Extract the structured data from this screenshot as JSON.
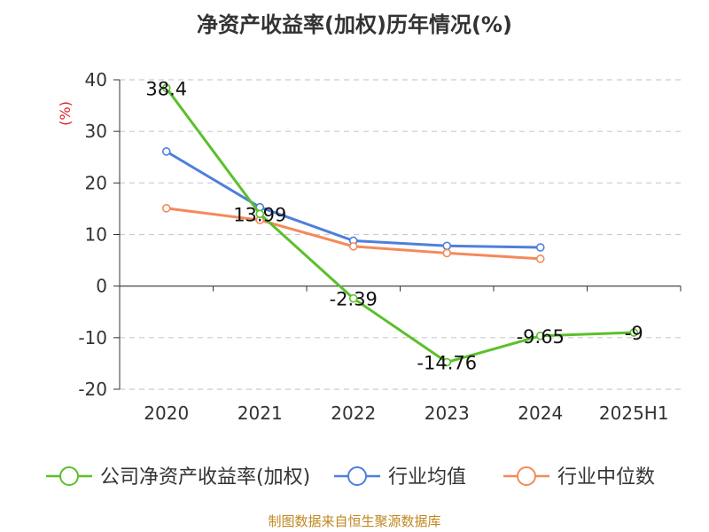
{
  "title": "净资产收益率(加权)历年情况(%)",
  "source": "制图数据来自恒生聚源数据库",
  "chart_data": {
    "type": "line",
    "title": "净资产收益率(加权)历年情况(%)",
    "ylabel": "(%)",
    "xlabel": "",
    "categories": [
      "2020",
      "2021",
      "2022",
      "2023",
      "2024",
      "2025H1"
    ],
    "ylim": [
      -20,
      40
    ],
    "yticks": [
      -20,
      -10,
      0,
      10,
      20,
      30,
      40
    ],
    "grid": true,
    "legend_position": "bottom",
    "series": [
      {
        "name": "公司净资产收益率(加权)",
        "color": "#5bc02b",
        "values": [
          38.4,
          13.99,
          -2.39,
          -14.76,
          -9.65,
          -9
        ],
        "show_labels": true
      },
      {
        "name": "行业均值",
        "color": "#4e7fdc",
        "values": [
          26.1,
          15.3,
          8.8,
          7.8,
          7.5,
          null
        ],
        "show_labels": false
      },
      {
        "name": "行业中位数",
        "color": "#f4895a",
        "values": [
          15.1,
          12.8,
          7.7,
          6.4,
          5.3,
          null
        ],
        "show_labels": false
      }
    ],
    "data_labels": [
      "38.4",
      "13.99",
      "-2.39",
      "-14.76",
      "-9.65",
      "-9"
    ]
  }
}
